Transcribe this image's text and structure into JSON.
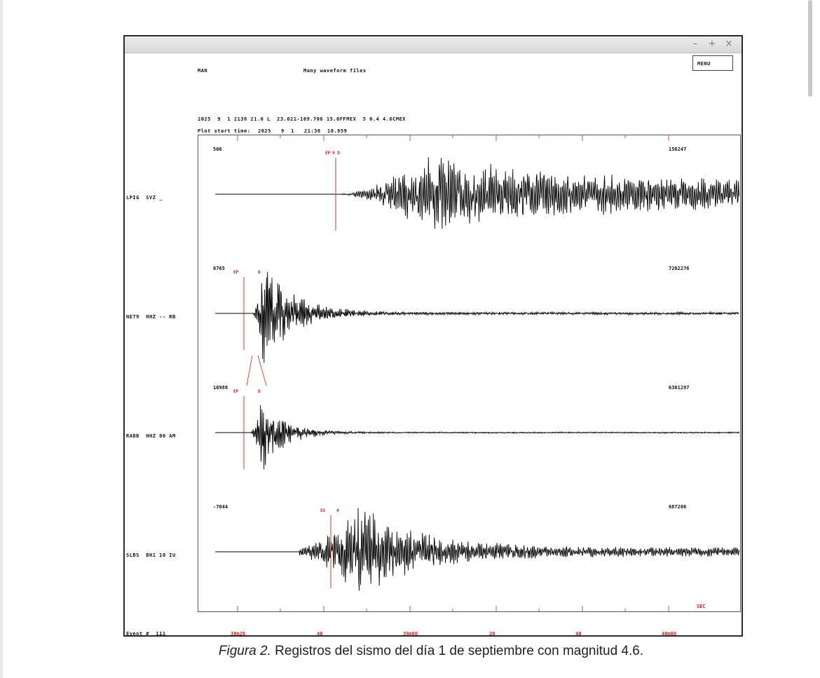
{
  "window": {
    "controls": [
      "–",
      "+",
      "×"
    ]
  },
  "header": {
    "mode": "MAN",
    "title": "Many waveform files",
    "menu_label": "MENU",
    "event_line": "2025  9  1 2138 21.6 L  23.021-109.706 15.0FFMEX  5 0.4 4.6CMEX",
    "plot_start_label": "Plot start time:",
    "plot_start_value": "2025   9  1   21:38  10.859"
  },
  "traces": [
    {
      "station": "LPIG  SVZ _",
      "min_label": "566",
      "max_label": "156247",
      "picks": [
        {
          "label": "EP",
          "x": 197
        },
        {
          "label": "9 D",
          "x": 207
        }
      ]
    },
    {
      "station": "NE79  HHZ -- RB",
      "min_label": "6765",
      "max_label": "7202276",
      "picks": [
        {
          "label": "EP",
          "x": 66
        },
        {
          "label": "D",
          "x": 101
        }
      ]
    },
    {
      "station": "RABB  HHZ 00 AM",
      "min_label": "16988",
      "max_label": "6301297",
      "picks": [
        {
          "label": "EP",
          "x": 66
        },
        {
          "label": "D",
          "x": 101
        }
      ]
    },
    {
      "station": "SLBS  BH1 10 IU",
      "min_label": "-7044",
      "max_label": "687206",
      "picks": [
        {
          "label": "ES",
          "x": 190
        },
        {
          "label": "4",
          "x": 213
        }
      ]
    }
  ],
  "xaxis": {
    "tick_labels": [
      "38m20",
      "40",
      "39m00",
      "20",
      "40",
      "40m00"
    ],
    "unit": "SEC"
  },
  "footer": {
    "event_label": "Event #  111"
  },
  "caption": {
    "italic": "Figura 2.",
    "text": " Registros del sismo del día 1 de septiembre con magnitud 4.6."
  },
  "colors": {
    "pick": "#d42020",
    "trace": "#000000",
    "window_border": "#2b2b2b"
  }
}
